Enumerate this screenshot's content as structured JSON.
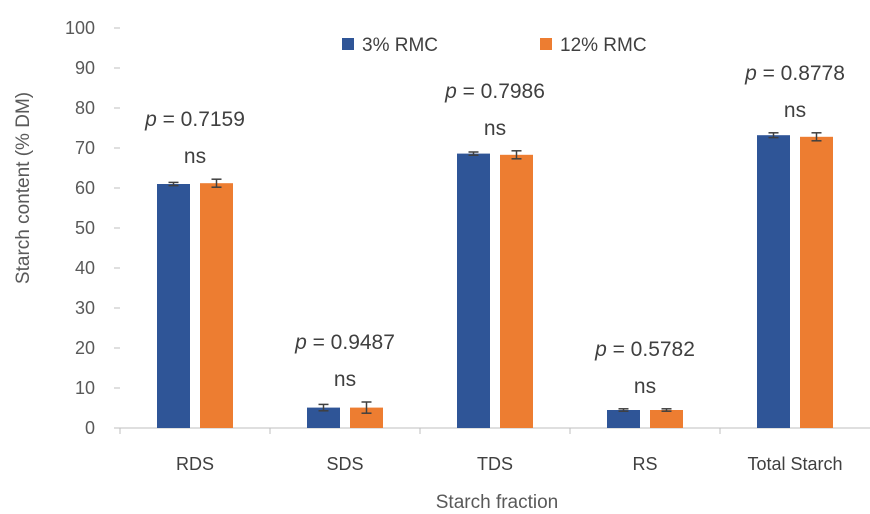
{
  "chart_data": {
    "type": "bar",
    "categories": [
      "RDS",
      "SDS",
      "TDS",
      "RS",
      "Total Starch"
    ],
    "series": [
      {
        "name": "3% RMC",
        "color": "#2F5597",
        "values": [
          61.0,
          5.1,
          68.6,
          4.5,
          73.2
        ],
        "errors": [
          0.4,
          0.8,
          0.4,
          0.3,
          0.6
        ]
      },
      {
        "name": "12% RMC",
        "color": "#ED7D31",
        "values": [
          61.2,
          5.1,
          68.3,
          4.5,
          72.8
        ],
        "errors": [
          1.0,
          1.4,
          1.0,
          0.3,
          1.0
        ]
      }
    ],
    "xlabel": "Starch fraction",
    "ylabel": "Starch content (% DM)",
    "ylim": [
      0,
      100
    ],
    "yticks": [
      0,
      10,
      20,
      30,
      40,
      50,
      60,
      70,
      80,
      90,
      100
    ],
    "grid": false,
    "legend": "top",
    "annotations": [
      {
        "category": "RDS",
        "p_prefix": "p",
        "p_value": "= 0.7159",
        "sig": "ns"
      },
      {
        "category": "SDS",
        "p_prefix": "p",
        "p_value": "= 0.9487",
        "sig": "ns"
      },
      {
        "category": "TDS",
        "p_prefix": "p",
        "p_value": "= 0.7986",
        "sig": "ns"
      },
      {
        "category": "RS",
        "p_prefix": "p",
        "p_value": "= 0.5782",
        "sig": "ns"
      },
      {
        "category": "Total Starch",
        "p_prefix": "p",
        "p_value": "= 0.8778",
        "sig": "ns"
      }
    ]
  }
}
